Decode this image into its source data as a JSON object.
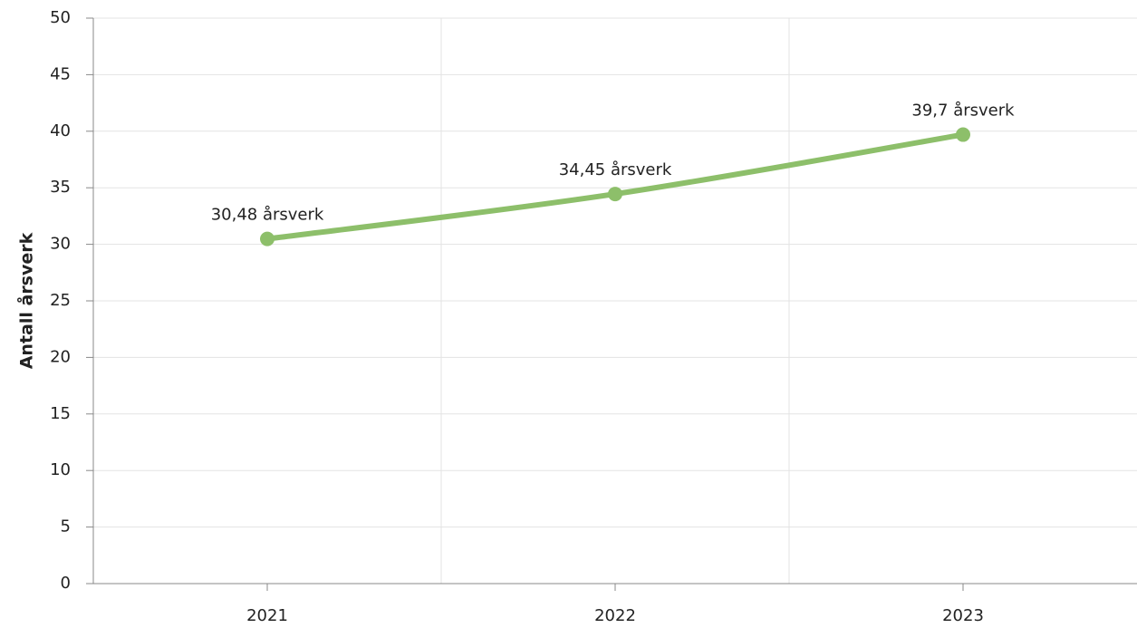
{
  "chart_data": {
    "type": "line",
    "y_label": "Antall årsverk",
    "categories": [
      "2021",
      "2022",
      "2023"
    ],
    "values": [
      30.48,
      34.45,
      39.7
    ],
    "value_labels": [
      "30,48 årsverk",
      "34,45 årsverk",
      "39,7 årsverk"
    ],
    "color": "#8dbf6a",
    "smooth": true,
    "ylim": [
      0,
      50
    ],
    "yticks": [
      0,
      5,
      10,
      15,
      20,
      25,
      30,
      35,
      40,
      45,
      50
    ],
    "grid": true
  }
}
